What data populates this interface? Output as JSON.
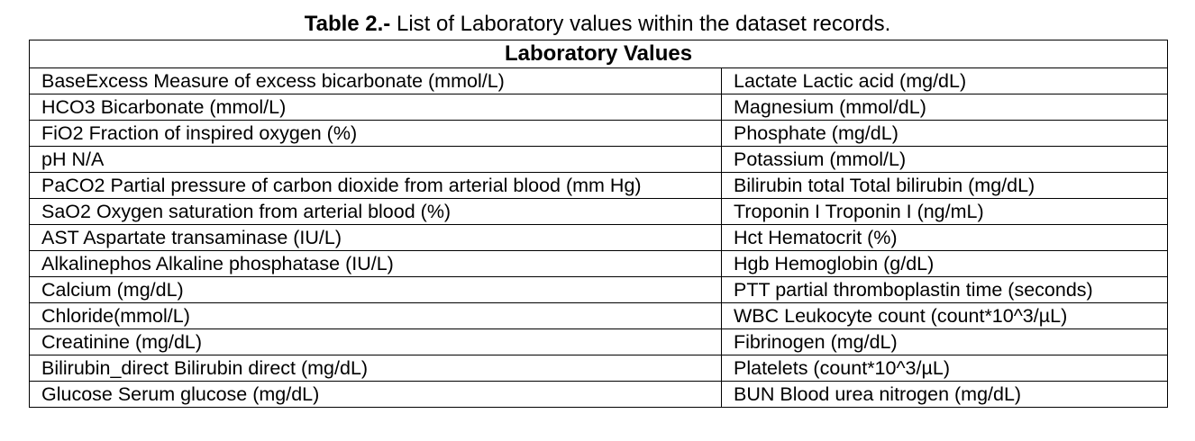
{
  "caption": {
    "label": "Table 2.-",
    "text": " List of Laboratory values within the dataset records."
  },
  "table": {
    "header": "Laboratory Values",
    "rows": [
      {
        "left": "BaseExcess Measure of excess bicarbonate (mmol/L)",
        "right": "Lactate Lactic acid (mg/dL)"
      },
      {
        "left": "HCO3 Bicarbonate (mmol/L)",
        "right": "Magnesium (mmol/dL)"
      },
      {
        "left": "FiO2 Fraction of inspired oxygen (%)",
        "right": "Phosphate (mg/dL)"
      },
      {
        "left": "pH N/A",
        "right": "Potassium (mmol/L)"
      },
      {
        "left": "PaCO2 Partial pressure of carbon dioxide from arterial blood (mm Hg)",
        "right": "Bilirubin total Total bilirubin (mg/dL)"
      },
      {
        "left": "SaO2 Oxygen saturation from arterial blood (%)",
        "right": "Troponin I Troponin I (ng/mL)"
      },
      {
        "left": "AST Aspartate transaminase (IU/L)",
        "right": "Hct Hematocrit (%)"
      },
      {
        "left": "Alkalinephos Alkaline phosphatase (IU/L)",
        "right": "Hgb Hemoglobin (g/dL)"
      },
      {
        "left": "Calcium (mg/dL)",
        "right": "PTT partial thromboplastin time (seconds)"
      },
      {
        "left": "Chloride(mmol/L)",
        "right": "WBC Leukocyte count (count*10^3/µL)"
      },
      {
        "left": "Creatinine (mg/dL)",
        "right": "Fibrinogen (mg/dL)"
      },
      {
        "left": "Bilirubin_direct Bilirubin direct (mg/dL)",
        "right": "Platelets (count*10^3/µL)"
      },
      {
        "left": "Glucose Serum glucose (mg/dL)",
        "right": "BUN Blood urea nitrogen (mg/dL)"
      }
    ]
  }
}
